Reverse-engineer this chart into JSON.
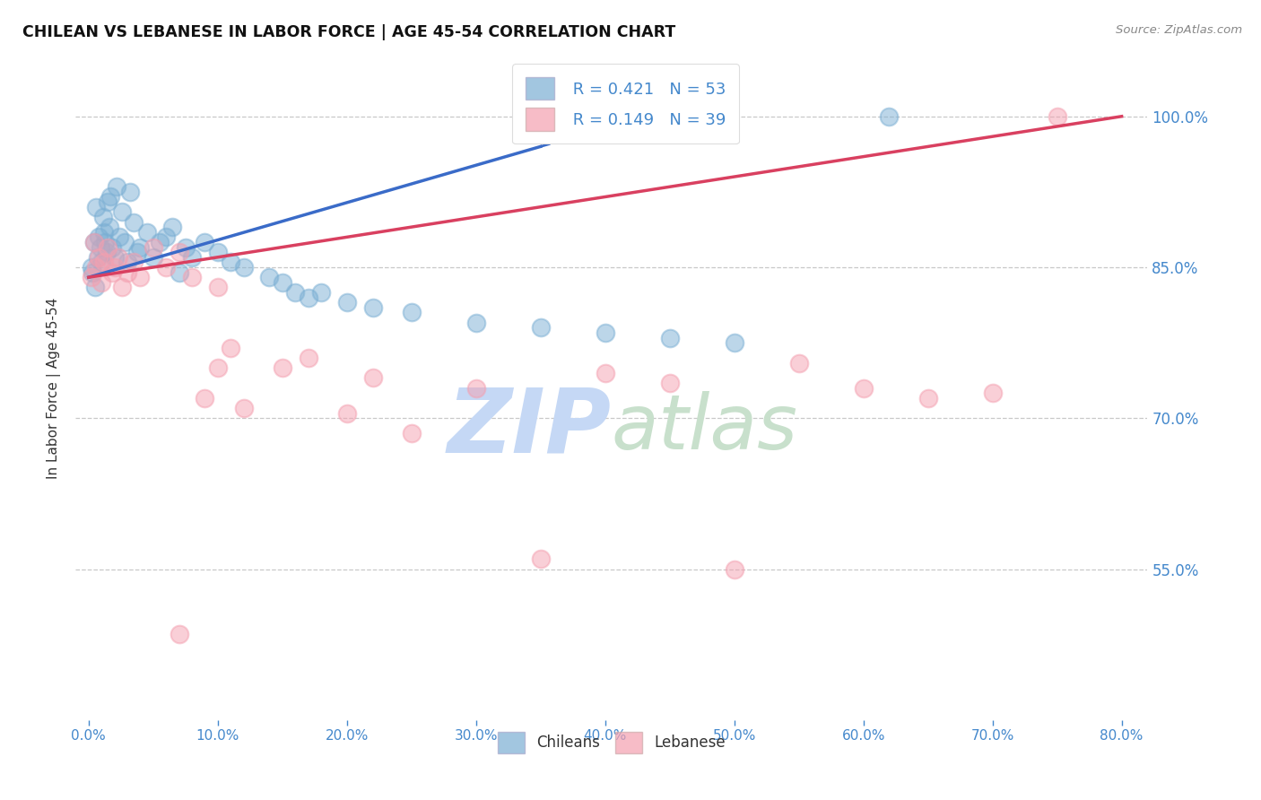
{
  "title": "CHILEAN VS LEBANESE IN LABOR FORCE | AGE 45-54 CORRELATION CHART",
  "source": "Source: ZipAtlas.com",
  "ylabel_label": "In Labor Force | Age 45-54",
  "legend_labels": [
    "Chileans",
    "Lebanese"
  ],
  "R_chilean": 0.421,
  "N_chilean": 53,
  "R_lebanese": 0.149,
  "N_lebanese": 39,
  "chilean_color": "#7BAFD4",
  "lebanese_color": "#F4A0B0",
  "trend_chilean_color": "#3A6BC8",
  "trend_lebanese_color": "#D94060",
  "watermark_zip": "ZIP",
  "watermark_atlas": "atlas",
  "watermark_zip_color": "#C8D8F0",
  "watermark_atlas_color": "#D8E8D0",
  "bg_color": "#FFFFFF",
  "grid_color": "#BBBBBB",
  "tick_color": "#4488CC",
  "chilean_scatter_x": [
    0.2,
    0.3,
    0.4,
    0.5,
    0.6,
    0.7,
    0.8,
    0.9,
    1.0,
    1.1,
    1.2,
    1.3,
    1.4,
    1.5,
    1.6,
    1.7,
    1.8,
    2.0,
    2.2,
    2.4,
    2.6,
    2.8,
    3.0,
    3.2,
    3.5,
    3.8,
    4.0,
    4.5,
    5.0,
    5.5,
    6.0,
    6.5,
    7.0,
    7.5,
    8.0,
    9.0,
    10.0,
    11.0,
    12.0,
    14.0,
    15.0,
    16.0,
    17.0,
    18.0,
    20.0,
    22.0,
    25.0,
    30.0,
    35.0,
    40.0,
    45.0,
    50.0,
    62.0
  ],
  "chilean_scatter_y": [
    85.0,
    84.5,
    87.5,
    83.0,
    91.0,
    86.0,
    88.0,
    87.0,
    85.5,
    90.0,
    88.5,
    87.5,
    86.5,
    91.5,
    89.0,
    92.0,
    87.0,
    86.0,
    93.0,
    88.0,
    90.5,
    87.5,
    85.5,
    92.5,
    89.5,
    86.5,
    87.0,
    88.5,
    86.0,
    87.5,
    88.0,
    89.0,
    84.5,
    87.0,
    86.0,
    87.5,
    86.5,
    85.5,
    85.0,
    84.0,
    83.5,
    82.5,
    82.0,
    82.5,
    81.5,
    81.0,
    80.5,
    79.5,
    79.0,
    78.5,
    78.0,
    77.5,
    100.0
  ],
  "lebanese_scatter_x": [
    0.2,
    0.4,
    0.6,
    0.8,
    1.0,
    1.2,
    1.5,
    1.8,
    2.0,
    2.3,
    2.6,
    3.0,
    3.5,
    4.0,
    5.0,
    6.0,
    7.0,
    8.0,
    9.0,
    10.0,
    11.0,
    12.0,
    15.0,
    17.0,
    20.0,
    22.0,
    25.0,
    30.0,
    35.0,
    40.0,
    45.0,
    50.0,
    55.0,
    60.0,
    65.0,
    70.0,
    75.0,
    7.0,
    10.0
  ],
  "lebanese_scatter_y": [
    84.0,
    87.5,
    85.0,
    86.0,
    83.5,
    85.5,
    87.0,
    84.5,
    85.0,
    86.0,
    83.0,
    84.5,
    85.5,
    84.0,
    87.0,
    85.0,
    86.5,
    84.0,
    72.0,
    75.0,
    77.0,
    71.0,
    75.0,
    76.0,
    70.5,
    74.0,
    68.5,
    73.0,
    56.0,
    74.5,
    73.5,
    55.0,
    75.5,
    73.0,
    72.0,
    72.5,
    100.0,
    48.5,
    83.0
  ],
  "x_min": -1.0,
  "x_max": 82.0,
  "y_min": 40.0,
  "y_max": 106.0,
  "yticks": [
    55.0,
    70.0,
    85.0,
    100.0
  ],
  "xticks": [
    0.0,
    10.0,
    20.0,
    30.0,
    40.0,
    50.0,
    60.0,
    70.0,
    80.0
  ]
}
